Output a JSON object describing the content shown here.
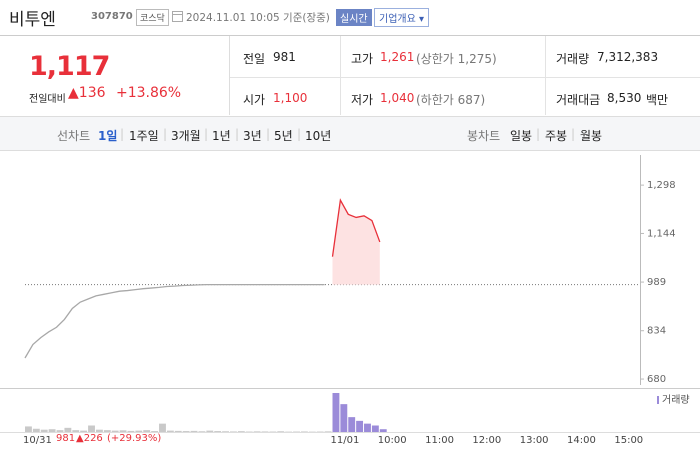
{
  "header": {
    "name": "비투엔",
    "code": "307870",
    "market": "코스닥",
    "timestamp": "2024.11.01 10:05 기준(장중)",
    "realtime": "실시간",
    "company_info": "기업개요"
  },
  "quote": {
    "price": "1,117",
    "change_label": "전일대비",
    "change": "136",
    "rate": "+13.86%"
  },
  "summary": {
    "rows": [
      [
        {
          "label": "전일",
          "value": "981"
        },
        {
          "label": "고가",
          "value": "1,261",
          "note": "(상한가 1,275)"
        },
        {
          "label": "거래량",
          "value": "7,312,383"
        }
      ],
      [
        {
          "label": "시가",
          "value": "1,100"
        },
        {
          "label": "저가",
          "value": "1,040",
          "note": "(하한가 687)"
        },
        {
          "label": "거래대금",
          "value": "8,530",
          "unit": "백만"
        }
      ]
    ]
  },
  "toolbar": {
    "line_chart": "선차트",
    "periods": [
      "1일",
      "1주일",
      "3개월",
      "1년",
      "3년",
      "5년",
      "10년"
    ],
    "candle_chart": "봉차트",
    "candles": [
      "일봉",
      "주봉",
      "월봉"
    ]
  },
  "chart_data": {
    "type": "line",
    "categories": [
      "10/31",
      null,
      null,
      null,
      null,
      null,
      null,
      null,
      null,
      null,
      null,
      null,
      null,
      null,
      null,
      null,
      null,
      null,
      null,
      null,
      null,
      null,
      null,
      null,
      null,
      null,
      null,
      null,
      null,
      null,
      null,
      null,
      null,
      null,
      null,
      null,
      null,
      null,
      null,
      "11/01",
      null,
      null,
      null,
      null,
      null,
      "10:00",
      null,
      null,
      null,
      null,
      null,
      "11:00",
      null,
      null,
      null,
      null,
      null,
      "12:00",
      null,
      null,
      null,
      null,
      null,
      "13:00",
      null,
      null,
      null,
      null,
      null,
      "14:00",
      null,
      null,
      null,
      null,
      null,
      "15:00",
      null,
      null
    ],
    "series": [
      {
        "color": "#a8a8a8",
        "values": [
          747,
          790,
          812,
          830,
          845,
          870,
          905,
          925,
          935,
          945,
          950,
          955,
          960,
          962,
          965,
          968,
          970,
          972,
          975,
          976,
          978,
          979,
          980,
          981,
          981,
          981,
          981,
          981,
          981,
          981,
          981,
          981,
          981,
          981,
          981,
          981,
          981,
          981,
          981,
          null,
          null,
          null,
          null,
          null,
          null,
          null,
          null,
          null,
          null,
          null,
          null,
          null,
          null,
          null,
          null,
          null,
          null,
          null,
          null,
          null,
          null,
          null,
          null,
          null,
          null,
          null,
          null,
          null,
          null,
          null,
          null,
          null,
          null,
          null,
          null,
          null,
          null,
          null
        ]
      },
      {
        "color": "#e8303a",
        "area_color": "#fde2e2",
        "values": [
          null,
          null,
          null,
          null,
          null,
          null,
          null,
          null,
          null,
          null,
          null,
          null,
          null,
          null,
          null,
          null,
          null,
          null,
          null,
          null,
          null,
          null,
          null,
          null,
          null,
          null,
          null,
          null,
          null,
          null,
          null,
          null,
          null,
          null,
          null,
          null,
          null,
          null,
          null,
          1070,
          1250,
          1205,
          1195,
          1200,
          1185,
          1117,
          null,
          null,
          null,
          null,
          null,
          null,
          null,
          null,
          null,
          null,
          null,
          null,
          null,
          null,
          null,
          null,
          null,
          null,
          null,
          null,
          null,
          null,
          null,
          null,
          null,
          null,
          null,
          null,
          null,
          null,
          null,
          null
        ]
      }
    ],
    "baseline": 981,
    "ylim": [
      661,
      1394
    ],
    "yticks": [
      {
        "value": 680,
        "label": "680"
      },
      {
        "value": 834,
        "label": "834"
      },
      {
        "value": 989,
        "label": "989"
      },
      {
        "value": 1144,
        "label": "1,144"
      },
      {
        "value": 1298,
        "label": "1,298"
      }
    ],
    "volume_label": "거래량",
    "volume": [
      {
        "color": "#c9c9c9",
        "values": [
          60000,
          35000,
          25000,
          30000,
          20000,
          45000,
          20000,
          15000,
          70000,
          25000,
          20000,
          15000,
          18000,
          12000,
          15000,
          20000,
          10000,
          90000,
          15000,
          12000,
          10000,
          12000,
          8000,
          15000,
          10000,
          8000,
          6000,
          9000,
          5000,
          7000,
          6000,
          5000,
          8000,
          4000,
          5000,
          6000,
          4000,
          5000,
          7000,
          null,
          null,
          null,
          null,
          null,
          null,
          null,
          null,
          null,
          null,
          null,
          null,
          null,
          null,
          null,
          null,
          null,
          null,
          null,
          null,
          null,
          null,
          null,
          null,
          null,
          null,
          null,
          null,
          null,
          null,
          null,
          null,
          null,
          null,
          null,
          null,
          null,
          null,
          null
        ]
      },
      {
        "color": "#9b8bd9",
        "values": [
          null,
          null,
          null,
          null,
          null,
          null,
          null,
          null,
          null,
          null,
          null,
          null,
          null,
          null,
          null,
          null,
          null,
          null,
          null,
          null,
          null,
          null,
          null,
          null,
          null,
          null,
          null,
          null,
          null,
          null,
          null,
          null,
          null,
          null,
          null,
          null,
          null,
          null,
          null,
          420000,
          300000,
          160000,
          120000,
          90000,
          70000,
          30000,
          null,
          null,
          null,
          null,
          null,
          null,
          null,
          null,
          null,
          null,
          null,
          null,
          null,
          null,
          null,
          null,
          null,
          null,
          null,
          null,
          null,
          null,
          null,
          null,
          null,
          null,
          null,
          null,
          null,
          null,
          null,
          null
        ]
      }
    ]
  },
  "footer": {
    "close": "981",
    "change": "226",
    "rate": "(+29.93%)"
  }
}
